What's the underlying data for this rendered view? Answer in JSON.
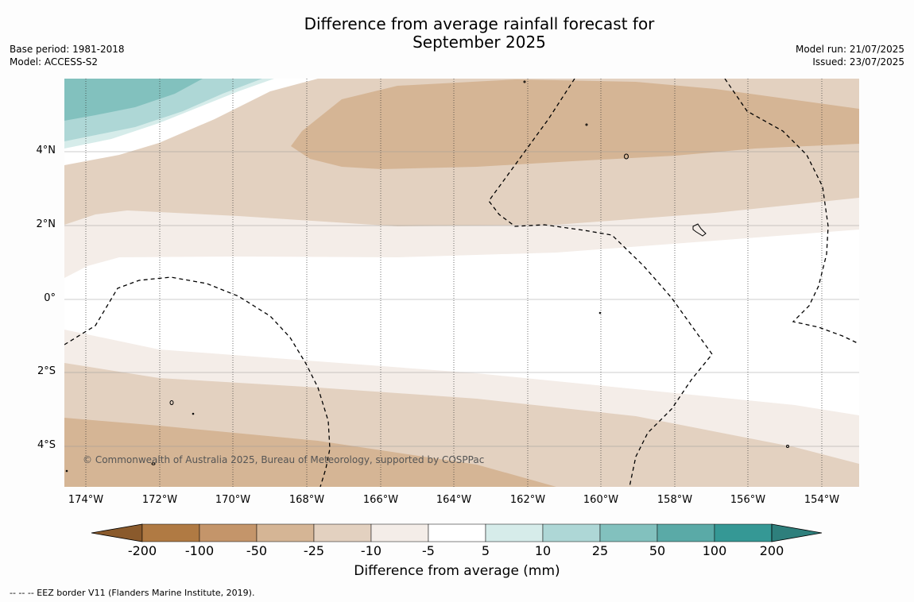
{
  "header": {
    "title_line1": "Difference from average rainfall forecast for",
    "title_line2": "September 2025",
    "base_period": "Base period: 1981-2018",
    "model": "Model: ACCESS-S2",
    "model_run": "Model run: 21/07/2025",
    "issued": "Issued: 23/07/2025"
  },
  "map": {
    "lat_labels": [
      "4°N",
      "2°N",
      "0°",
      "2°S",
      "4°S"
    ],
    "lon_labels": [
      "174°W",
      "172°W",
      "170°W",
      "168°W",
      "166°W",
      "164°W",
      "162°W",
      "160°W",
      "158°W",
      "156°W",
      "154°W"
    ],
    "credit": "© Commonwealth of Australia 2025, Bureau of Meteorology, supported by COSPPac"
  },
  "colorbar": {
    "ticks": [
      "-200",
      "-100",
      "-50",
      "-25",
      "-10",
      "-5",
      "5",
      "10",
      "25",
      "50",
      "100",
      "200"
    ],
    "colors": [
      "#8a5a2c",
      "#b07a43",
      "#c4956a",
      "#d5b595",
      "#e3d1c0",
      "#f4ede8",
      "#ffffff",
      "#d6ecea",
      "#aed7d6",
      "#82c1be",
      "#5aaaa7",
      "#359895",
      "#2e7f7c"
    ],
    "title": "Difference from average (mm)"
  },
  "footnote": "--  --  -- EEZ border V11 (Flanders Marine Institute, 2019)."
}
